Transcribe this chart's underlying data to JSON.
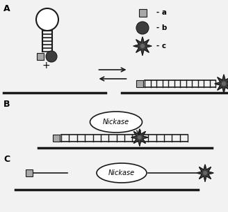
{
  "bg_color": "#f2f2f2",
  "line_color": "#1a1a1a",
  "square_color": "#a8a8a8",
  "circle_color": "#3d3d3d",
  "star_color": "#3d3d3d",
  "star_inner_color": "#666666",
  "hairpin_circle_color": "#ffffff",
  "nickase_fill": "#ffffff",
  "label_a": "- a",
  "label_b": "- b",
  "label_c": "- c",
  "section_A": "A",
  "section_B": "B",
  "section_C": "C",
  "nickase_text": "Nickase",
  "plus_text": "+"
}
